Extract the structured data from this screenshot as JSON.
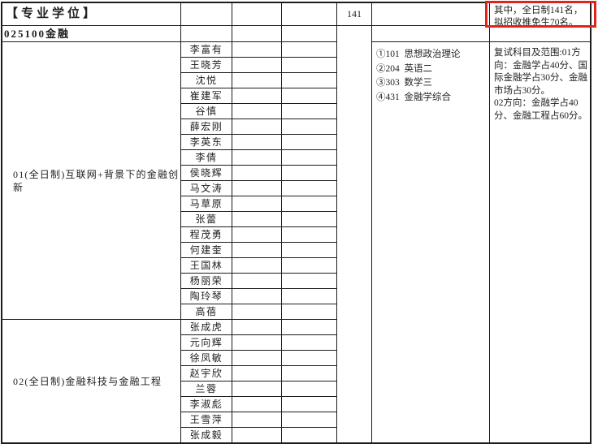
{
  "header": {
    "category": "【专业学位】",
    "program": "025100金融",
    "total_quota": "141",
    "quota_note": "其中，全日制141名，拟招收推免生70名。",
    "highlight_color": "#e0241c"
  },
  "exam_subjects": {
    "items": [
      "①101  思想政治理论",
      "②204  英语二",
      "③303  数学三",
      "④431  金融学综合"
    ]
  },
  "retest_remarks": {
    "line1": "复试科目及范围:01方向：金融学占40分、国际金融学占30分、金融市场占30分。",
    "line2": "02方向：金融学占40分、金融工程占60分。"
  },
  "directions": [
    {
      "label": "01(全日制)互联网+背景下的金融创新",
      "supervisors": [
        "李富有",
        "王晓芳",
        "沈悦",
        "崔建军",
        "谷慎",
        "薛宏刚",
        "李英东",
        "李倩",
        "侯晓辉",
        "马文涛",
        "马草原",
        "张蕾",
        "程茂勇",
        "何建奎",
        "王国林",
        "杨丽荣",
        "陶玲琴",
        "高蓓"
      ]
    },
    {
      "label": "02(全日制)金融科技与金融工程",
      "supervisors": [
        "张成虎",
        "元向辉",
        "徐凤敏",
        "赵宇欣",
        "兰蓉",
        "李淑彪",
        "王雪萍",
        "张成毅"
      ]
    }
  ]
}
